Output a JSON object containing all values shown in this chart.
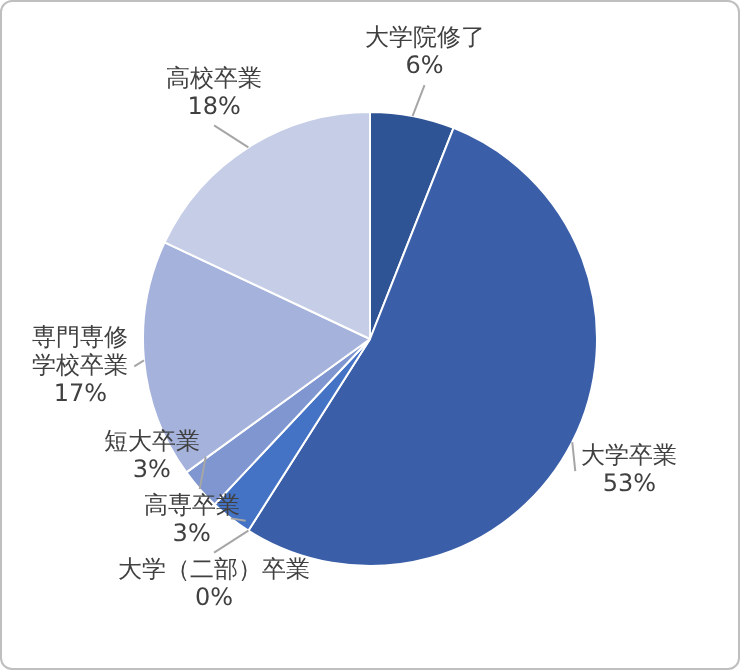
{
  "chart_data": {
    "type": "pie",
    "categories": [
      "大学院修了",
      "大学卒業",
      "大学（二部）卒業",
      "高専卒業",
      "短大卒業",
      "専門専修学校卒業",
      "高校卒業"
    ],
    "values": [
      6,
      53,
      0,
      3,
      3,
      17,
      18
    ],
    "value_labels": [
      "6%",
      "53%",
      "0%",
      "3%",
      "3%",
      "17%",
      "18%"
    ],
    "colors": [
      "#2f5496",
      "#3a5ea8",
      "#3d65b5",
      "#4472c4",
      "#7f96d0",
      "#a5b2db",
      "#c5cde7"
    ],
    "legend": false
  }
}
